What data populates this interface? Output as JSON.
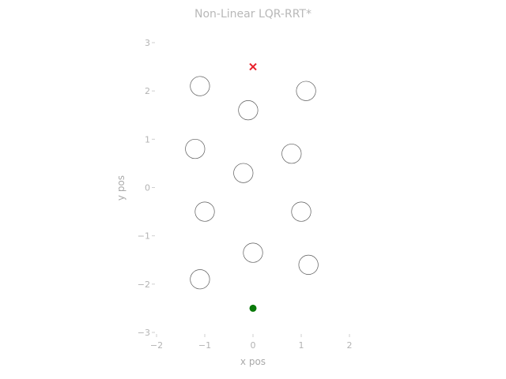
{
  "chart_data": {
    "type": "scatter",
    "title": "Non-Linear LQR-RRT*",
    "xlabel": "x pos",
    "ylabel": "y pos",
    "xlim": [
      -2,
      2
    ],
    "ylim": [
      -3,
      3
    ],
    "xticks": [
      -2,
      -1,
      0,
      1,
      2
    ],
    "yticks": [
      -3,
      -2,
      -1,
      0,
      1,
      2,
      3
    ],
    "xtick_labels": [
      "−2",
      "−1",
      "0",
      "1",
      "2"
    ],
    "ytick_labels": [
      "−3",
      "−2",
      "−1",
      "0",
      "1",
      "2",
      "3"
    ],
    "grid": false,
    "obstacles": [
      {
        "x": -1.1,
        "y": 2.1,
        "r": 0.2
      },
      {
        "x": 1.1,
        "y": 2.0,
        "r": 0.2
      },
      {
        "x": -0.1,
        "y": 1.6,
        "r": 0.2
      },
      {
        "x": -1.2,
        "y": 0.8,
        "r": 0.2
      },
      {
        "x": 0.8,
        "y": 0.7,
        "r": 0.2
      },
      {
        "x": -0.2,
        "y": 0.3,
        "r": 0.2
      },
      {
        "x": -1.0,
        "y": -0.5,
        "r": 0.2
      },
      {
        "x": 1.0,
        "y": -0.5,
        "r": 0.2
      },
      {
        "x": 0.0,
        "y": -1.35,
        "r": 0.2
      },
      {
        "x": 1.15,
        "y": -1.6,
        "r": 0.2
      },
      {
        "x": -1.1,
        "y": -1.9,
        "r": 0.2
      }
    ],
    "start": {
      "x": 0.0,
      "y": -2.5,
      "color": "#0a7a0a"
    },
    "goal": {
      "x": 0.0,
      "y": 2.5,
      "color": "#e8202a"
    }
  }
}
